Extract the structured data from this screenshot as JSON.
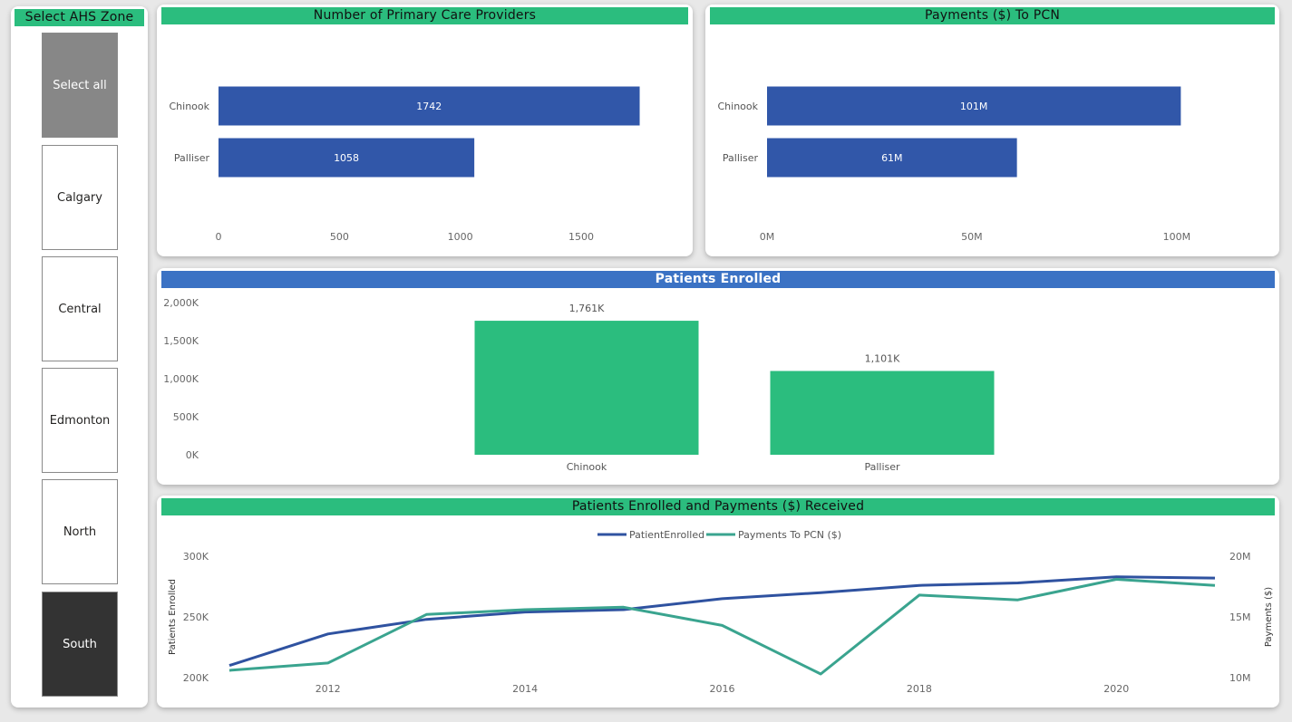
{
  "slicer": {
    "title": "Select AHS Zone",
    "items": [
      {
        "label": "Select all",
        "state": "partial"
      },
      {
        "label": "Calgary",
        "state": "off"
      },
      {
        "label": "Central",
        "state": "off"
      },
      {
        "label": "Edmonton",
        "state": "off"
      },
      {
        "label": "North",
        "state": "off"
      },
      {
        "label": "South",
        "state": "selected"
      }
    ]
  },
  "colors": {
    "green": "#2bbd7e",
    "blue_bar": "#3157a9",
    "header_blue": "#3b72c4",
    "line_enrolled": "#2f52a0",
    "line_payments": "#3aa48f",
    "slicer_selected": "#333333",
    "slicer_partial": "#878787"
  },
  "providers": {
    "title": "Number of Primary Care Providers",
    "chart_data": {
      "type": "bar",
      "orientation": "horizontal",
      "categories": [
        "Chinook",
        "Palliser"
      ],
      "values": [
        1742,
        1058
      ],
      "value_labels": [
        "1742",
        "1058"
      ],
      "xlim": [
        0,
        1800
      ],
      "ticks": [
        0,
        500,
        1000,
        1500
      ],
      "tick_labels": [
        "0",
        "500",
        "1000",
        "1500"
      ]
    }
  },
  "payments": {
    "title": "Payments ($) To PCN",
    "chart_data": {
      "type": "bar",
      "orientation": "horizontal",
      "categories": [
        "Chinook",
        "Palliser"
      ],
      "values": [
        101,
        61
      ],
      "value_labels": [
        "101M",
        "61M"
      ],
      "units": "M",
      "xlim": [
        0,
        108
      ],
      "ticks": [
        0,
        50,
        100
      ],
      "tick_labels": [
        "0M",
        "50M",
        "100M"
      ]
    }
  },
  "enrolled": {
    "title": "Patients Enrolled",
    "chart_data": {
      "type": "bar",
      "orientation": "vertical",
      "categories": [
        "Chinook",
        "Palliser"
      ],
      "values": [
        1761,
        1101
      ],
      "value_labels": [
        "1,761K",
        "1,101K"
      ],
      "units": "K",
      "ylim": [
        0,
        2000
      ],
      "ticks": [
        0,
        500,
        1000,
        1500,
        2000
      ],
      "tick_labels": [
        "0K",
        "500K",
        "1,000K",
        "1,500K",
        "2,000K"
      ]
    }
  },
  "trend": {
    "title": "Patients Enrolled and Payments ($) Received",
    "chart_data": {
      "type": "line",
      "x": [
        2011,
        2012,
        2013,
        2014,
        2015,
        2016,
        2017,
        2018,
        2019,
        2020,
        2021
      ],
      "x_ticks": [
        2012,
        2014,
        2016,
        2018,
        2020
      ],
      "legend_position": "top-center",
      "series": [
        {
          "name": "PatientEnrolled",
          "axis": "left",
          "values": [
            210,
            236,
            248,
            254,
            256,
            265,
            270,
            276,
            278,
            283,
            282
          ]
        },
        {
          "name": "Payments To PCN ($)",
          "axis": "right",
          "values": [
            10.6,
            11.2,
            15.2,
            15.6,
            15.8,
            14.3,
            10.3,
            16.8,
            16.4,
            18.1,
            17.6
          ]
        }
      ],
      "ylabel_left": "Patients Enrolled",
      "ylim_left": [
        200,
        300
      ],
      "ticks_left": [
        "200K",
        "250K",
        "300K"
      ],
      "ylabel_right": "Payments ($)",
      "ylim_right": [
        10,
        20
      ],
      "ticks_right": [
        "10M",
        "15M",
        "20M"
      ]
    }
  }
}
